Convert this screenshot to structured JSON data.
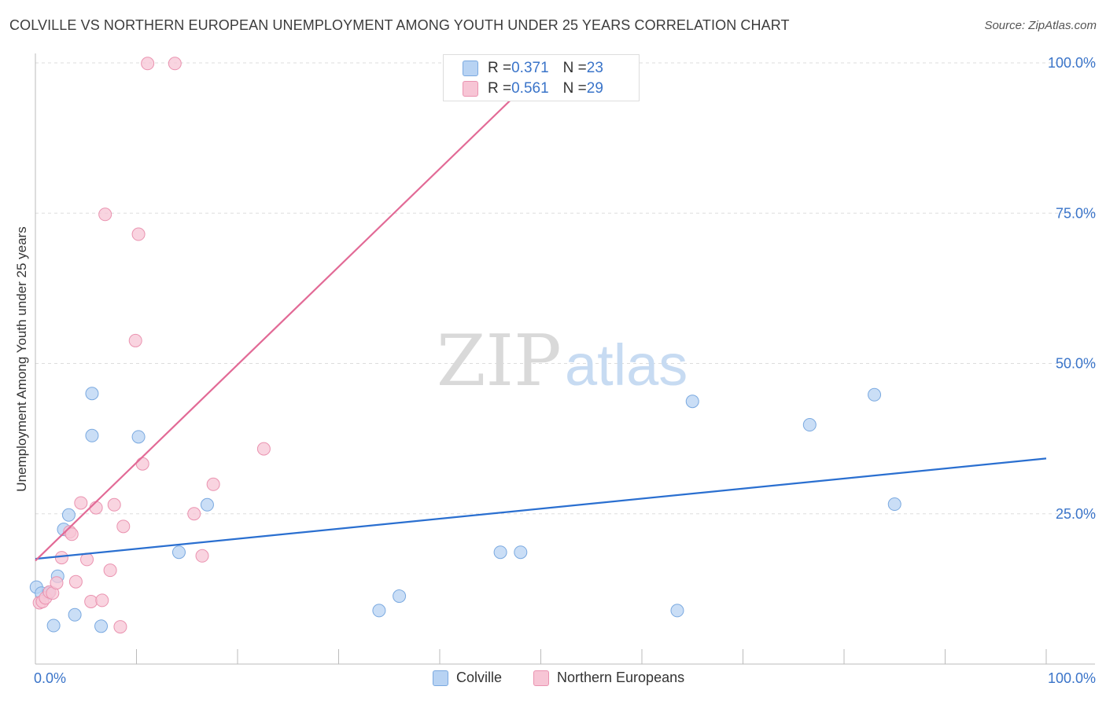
{
  "header": {
    "title": "COLVILLE VS NORTHERN EUROPEAN UNEMPLOYMENT AMONG YOUTH UNDER 25 YEARS CORRELATION CHART",
    "source": "Source: ZipAtlas.com"
  },
  "watermark": {
    "zip": "ZIP",
    "atlas": "atlas"
  },
  "stats": {
    "colville": {
      "r_label": "R = ",
      "r_value": "0.371",
      "n_label": "N = ",
      "n_value": "23"
    },
    "northern": {
      "r_label": "R = ",
      "r_value": "0.561",
      "n_label": "N = ",
      "n_value": "29"
    }
  },
  "legend": {
    "colville": "Colville",
    "northern": "Northern Europeans"
  },
  "colors": {
    "colville_fill": "#b8d3f3",
    "colville_stroke": "#7aa9e0",
    "colville_line": "#2a6fd0",
    "northern_fill": "#f7c5d5",
    "northern_stroke": "#ea93b0",
    "northern_line": "#e26a96",
    "tick_text": "#3a74c9",
    "grid": "#dddddd"
  },
  "chart_data": {
    "type": "scatter",
    "title": "COLVILLE VS NORTHERN EUROPEAN UNEMPLOYMENT AMONG YOUTH UNDER 25 YEARS CORRELATION CHART",
    "xlabel": "",
    "ylabel": "Unemployment Among Youth under 25 years",
    "xlim": [
      0,
      100
    ],
    "ylim": [
      0,
      100
    ],
    "x_tick_labels": [
      {
        "value": 0,
        "label": "0.0%"
      },
      {
        "value": 100,
        "label": "100.0%"
      }
    ],
    "y_tick_labels": [
      {
        "value": 25,
        "label": "25.0%"
      },
      {
        "value": 50,
        "label": "50.0%"
      },
      {
        "value": 75,
        "label": "75.0%"
      },
      {
        "value": 100,
        "label": "100.0%"
      }
    ],
    "series": [
      {
        "name": "Colville",
        "points": [
          {
            "x": 0.1,
            "y": 12.8
          },
          {
            "x": 0.6,
            "y": 11.8
          },
          {
            "x": 1.3,
            "y": 11.8
          },
          {
            "x": 1.8,
            "y": 6.4
          },
          {
            "x": 2.2,
            "y": 14.6
          },
          {
            "x": 2.8,
            "y": 22.4
          },
          {
            "x": 3.3,
            "y": 24.8
          },
          {
            "x": 3.9,
            "y": 8.2
          },
          {
            "x": 5.6,
            "y": 45.0
          },
          {
            "x": 5.6,
            "y": 38.0
          },
          {
            "x": 6.5,
            "y": 6.3
          },
          {
            "x": 10.2,
            "y": 37.8
          },
          {
            "x": 14.2,
            "y": 18.6
          },
          {
            "x": 17.0,
            "y": 26.5
          },
          {
            "x": 34.0,
            "y": 8.9
          },
          {
            "x": 36.0,
            "y": 11.3
          },
          {
            "x": 46.0,
            "y": 18.6
          },
          {
            "x": 48.0,
            "y": 18.6
          },
          {
            "x": 63.5,
            "y": 8.9
          },
          {
            "x": 65.0,
            "y": 43.7
          },
          {
            "x": 76.6,
            "y": 39.8
          },
          {
            "x": 83.0,
            "y": 44.8
          },
          {
            "x": 85.0,
            "y": 26.6
          }
        ],
        "trend": {
          "x0": 0,
          "y0": 17.5,
          "x1": 100,
          "y1": 34.2
        }
      },
      {
        "name": "Northern Europeans",
        "points": [
          {
            "x": 0.4,
            "y": 10.2
          },
          {
            "x": 0.7,
            "y": 10.4
          },
          {
            "x": 1.0,
            "y": 11.0
          },
          {
            "x": 1.4,
            "y": 12.0
          },
          {
            "x": 1.7,
            "y": 11.8
          },
          {
            "x": 2.1,
            "y": 13.5
          },
          {
            "x": 2.6,
            "y": 17.7
          },
          {
            "x": 3.4,
            "y": 22.0
          },
          {
            "x": 3.6,
            "y": 21.6
          },
          {
            "x": 4.0,
            "y": 13.7
          },
          {
            "x": 4.5,
            "y": 26.8
          },
          {
            "x": 5.1,
            "y": 17.4
          },
          {
            "x": 5.5,
            "y": 10.4
          },
          {
            "x": 6.0,
            "y": 26.0
          },
          {
            "x": 6.6,
            "y": 10.6
          },
          {
            "x": 6.9,
            "y": 74.8
          },
          {
            "x": 7.4,
            "y": 15.6
          },
          {
            "x": 7.8,
            "y": 26.5
          },
          {
            "x": 8.4,
            "y": 6.2
          },
          {
            "x": 8.7,
            "y": 22.9
          },
          {
            "x": 9.9,
            "y": 53.8
          },
          {
            "x": 10.2,
            "y": 71.5
          },
          {
            "x": 10.6,
            "y": 33.3
          },
          {
            "x": 11.1,
            "y": 99.9
          },
          {
            "x": 13.8,
            "y": 99.9
          },
          {
            "x": 15.7,
            "y": 25.0
          },
          {
            "x": 16.5,
            "y": 18.0
          },
          {
            "x": 17.6,
            "y": 29.9
          },
          {
            "x": 22.6,
            "y": 35.8
          }
        ],
        "trend": {
          "x0": 0,
          "y0": 17.2,
          "x1": 50.5,
          "y1": 99.5
        }
      }
    ],
    "legend_position": "bottom"
  }
}
